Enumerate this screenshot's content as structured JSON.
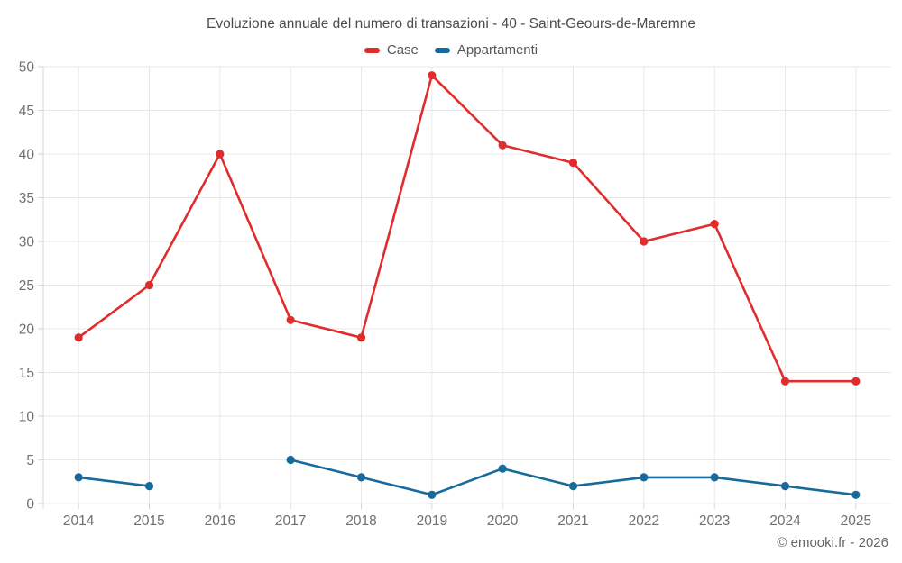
{
  "chart_data": {
    "type": "line",
    "title": "Evoluzione annuale del numero di transazioni - 40 - Saint-Geours-de-Maremne",
    "categories": [
      "2014",
      "2015",
      "2016",
      "2017",
      "2018",
      "2019",
      "2020",
      "2021",
      "2022",
      "2023",
      "2024",
      "2025"
    ],
    "series": [
      {
        "name": "Case",
        "color": "#e02c2c",
        "values": [
          19,
          25,
          40,
          21,
          19,
          49,
          41,
          39,
          30,
          32,
          14,
          14
        ]
      },
      {
        "name": "Appartamenti",
        "color": "#176b9c",
        "values": [
          3,
          2,
          null,
          5,
          3,
          1,
          4,
          2,
          3,
          3,
          2,
          1
        ]
      }
    ],
    "xlabel": "",
    "ylabel": "",
    "ylim": [
      0,
      50
    ],
    "ytick_step": 5,
    "grid": true,
    "legend_position": "top"
  },
  "footer": {
    "credit": "© emooki.fr - 2026"
  }
}
